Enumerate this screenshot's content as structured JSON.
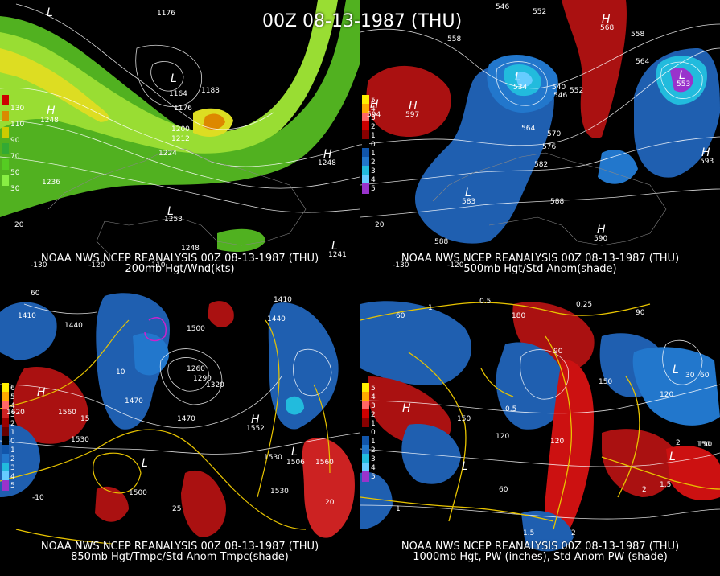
{
  "title": "00Z 08-13-1987 (THU)",
  "panels": [
    {
      "header": "NOAA NWS NCEP REANALYSIS 00Z 08-13-1987 (THU)",
      "subheader": "200mb Hgt/Wnd(kts)",
      "legend": [
        "130",
        "110",
        "90",
        "70",
        "50",
        "30"
      ],
      "legend_colors": [
        "#cc0000",
        "#d98a00",
        "#cccc00",
        "#33aa33",
        "#55cc22",
        "#88ee44"
      ],
      "labels": [
        {
          "t": "L",
          "k": "hl"
        },
        {
          "t": "1176"
        },
        {
          "t": "H",
          "k": "hl"
        },
        {
          "t": "1248"
        },
        {
          "t": "L",
          "k": "hl"
        },
        {
          "t": "1164"
        },
        {
          "t": "1176"
        },
        {
          "t": "1188"
        },
        {
          "t": "1200"
        },
        {
          "t": "1212"
        },
        {
          "t": "1224"
        },
        {
          "t": "1236"
        },
        {
          "t": "H",
          "k": "hl"
        },
        {
          "t": "1248"
        },
        {
          "t": "L",
          "k": "hl"
        },
        {
          "t": "1253"
        },
        {
          "t": "1248"
        },
        {
          "t": "L",
          "k": "hl"
        },
        {
          "t": "1241"
        },
        {
          "t": "20"
        },
        {
          "t": "-130"
        },
        {
          "t": "-120"
        },
        {
          "t": "-110"
        }
      ]
    },
    {
      "header": "NOAA NWS NCEP REANALYSIS 00Z 08-13-1987 (THU)",
      "subheader": "500mb Hgt/Std Anom(shade)",
      "legend": [
        "5",
        "4",
        "3",
        "2",
        "1",
        "0",
        "1",
        "2",
        "3",
        "4",
        "5"
      ],
      "legend_colors": [
        "#ffee00",
        "#ffaa00",
        "#ff6666",
        "#cc0000",
        "#880000",
        "#000000",
        "#1155aa",
        "#2277cc",
        "#22bbdd",
        "#66ccff",
        "#9933cc"
      ],
      "labels": [
        {
          "t": "546"
        },
        {
          "t": "552"
        },
        {
          "t": "558"
        },
        {
          "t": "558"
        },
        {
          "t": "564"
        },
        {
          "t": "L",
          "k": "hl"
        },
        {
          "t": "534"
        },
        {
          "t": "540"
        },
        {
          "t": "546"
        },
        {
          "t": "552"
        },
        {
          "t": "564"
        },
        {
          "t": "570"
        },
        {
          "t": "576"
        },
        {
          "t": "582"
        },
        {
          "t": "588"
        },
        {
          "t": "H",
          "k": "hl"
        },
        {
          "t": "594"
        },
        {
          "t": "H",
          "k": "hl"
        },
        {
          "t": "597"
        },
        {
          "t": "H",
          "k": "hl"
        },
        {
          "t": "568"
        },
        {
          "t": "L",
          "k": "hl"
        },
        {
          "t": "553"
        },
        {
          "t": "H",
          "k": "hl"
        },
        {
          "t": "593"
        },
        {
          "t": "L",
          "k": "hl"
        },
        {
          "t": "583"
        },
        {
          "t": "588"
        },
        {
          "t": "H",
          "k": "hl"
        },
        {
          "t": "590"
        },
        {
          "t": "-130"
        },
        {
          "t": "-120"
        },
        {
          "t": "20"
        }
      ]
    },
    {
      "header": "NOAA NWS NCEP REANALYSIS 00Z 08-13-1987 (THU)",
      "subheader": "850mb Hgt/Tmpc/Std Anom Tmpc(shade)",
      "legend": [
        "6",
        "5",
        "4",
        "3",
        "2",
        "1",
        "0",
        "1",
        "2",
        "3",
        "4",
        "5"
      ],
      "legend_colors": [
        "#ffee00",
        "#ffaa00",
        "#ff6666",
        "#cc2222",
        "#990000",
        "#660000",
        "#000000",
        "#1155aa",
        "#2277cc",
        "#22bbdd",
        "#66ccff",
        "#9933cc"
      ],
      "labels": [
        {
          "t": "60"
        },
        {
          "t": "1410"
        },
        {
          "t": "1440"
        },
        {
          "t": "1410"
        },
        {
          "t": "1440"
        },
        {
          "t": "1500"
        },
        {
          "t": "1260"
        },
        {
          "t": "1290"
        },
        {
          "t": "1320"
        },
        {
          "t": "1470"
        },
        {
          "t": "1470"
        },
        {
          "t": "1530"
        },
        {
          "t": "1530"
        },
        {
          "t": "1560"
        },
        {
          "t": "1560"
        },
        {
          "t": "1620"
        },
        {
          "t": "1500"
        },
        {
          "t": "1530"
        },
        {
          "t": "10"
        },
        {
          "t": "15"
        },
        {
          "t": "-10"
        },
        {
          "t": "25"
        },
        {
          "t": "20"
        },
        {
          "t": "H",
          "k": "hl"
        },
        {
          "t": "L",
          "k": "hl"
        },
        {
          "t": "L",
          "k": "hl"
        },
        {
          "t": "H",
          "k": "hl"
        },
        {
          "t": "1552"
        },
        {
          "t": "1506"
        }
      ]
    },
    {
      "header": "NOAA NWS NCEP REANALYSIS 00Z 08-13-1987 (THU)",
      "subheader": "1000mb Hgt, PW (inches), Std Anom PW (shade)",
      "legend": [
        "5",
        "4",
        "3",
        "2",
        "1",
        "0",
        "1",
        "2",
        "3",
        "4",
        "5"
      ],
      "legend_colors": [
        "#ffee00",
        "#ffaa00",
        "#ff6666",
        "#cc0000",
        "#880000",
        "#000000",
        "#1155aa",
        "#2277cc",
        "#22bbdd",
        "#66ccff",
        "#9933cc"
      ],
      "labels": [
        {
          "t": "60"
        },
        {
          "t": "1"
        },
        {
          "t": "0.5"
        },
        {
          "t": "0.25"
        },
        {
          "t": "90"
        },
        {
          "t": "180"
        },
        {
          "t": "90"
        },
        {
          "t": "150"
        },
        {
          "t": "120"
        },
        {
          "t": "L",
          "k": "hl"
        },
        {
          "t": "30"
        },
        {
          "t": "60"
        },
        {
          "t": "150"
        },
        {
          "t": "120"
        },
        {
          "t": "150"
        },
        {
          "t": "120"
        },
        {
          "t": "60"
        },
        {
          "t": "1.5"
        },
        {
          "t": "2"
        },
        {
          "t": "2"
        },
        {
          "t": "1"
        },
        {
          "t": "1.5"
        },
        {
          "t": "0.5"
        },
        {
          "t": "2"
        },
        {
          "t": "L",
          "k": "hl"
        },
        {
          "t": "H",
          "k": "hl"
        },
        {
          "t": "L",
          "k": "hl"
        },
        {
          "t": "150"
        }
      ]
    }
  ]
}
